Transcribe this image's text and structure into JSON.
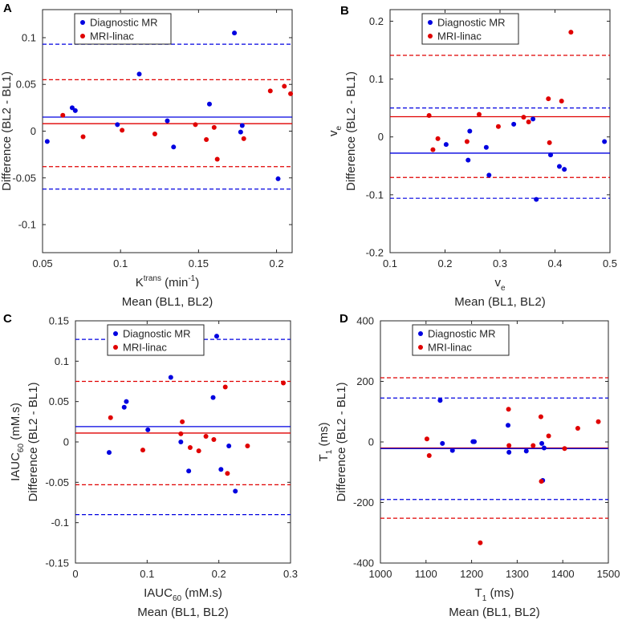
{
  "colors": {
    "diagnostic": "#0000e0",
    "linac": "#e00000",
    "axis": "#262626",
    "box": "#ffffff"
  },
  "legend": {
    "diagnostic": "Diagnostic MR",
    "linac": "MRI-linac"
  },
  "xlabel_sub": "Mean (BL1, BL2)",
  "ylabel_main": "Difference (BL2 - BL1)",
  "chart_data": [
    {
      "panel": "A",
      "type": "scatter",
      "title": "",
      "xlabel": {
        "base": "K",
        "sup": "trans",
        "suffix": " (min",
        "sup2": "-1",
        "end": ")"
      },
      "ylabel_var": {
        "base": "K",
        "sup": "trans",
        "suffix": " (min",
        "sup2": "-1",
        "end": ")"
      },
      "xlim": [
        0.05,
        0.21
      ],
      "ylim": [
        -0.13,
        0.13
      ],
      "xticks": [
        0.05,
        0.1,
        0.15,
        0.2
      ],
      "xticklabels": [
        "0.05",
        "0.1",
        "0.15",
        "0.2"
      ],
      "yticks": [
        -0.1,
        -0.05,
        0,
        0.05,
        0.1
      ],
      "yticklabels": [
        "-0.1",
        "-0.05",
        "0",
        "0.05",
        "0.1"
      ],
      "series": [
        {
          "name": "Diagnostic MR",
          "bias": 0.015,
          "loa_upper": 0.093,
          "loa_lower": -0.062,
          "x": [
            0.053,
            0.069,
            0.071,
            0.098,
            0.112,
            0.13,
            0.134,
            0.157,
            0.173,
            0.177,
            0.178,
            0.201
          ],
          "y": [
            -0.011,
            0.025,
            0.022,
            0.007,
            0.061,
            0.011,
            -0.017,
            0.029,
            0.105,
            -0.001,
            0.006,
            -0.051
          ]
        },
        {
          "name": "MRI-linac",
          "bias": 0.008,
          "loa_upper": 0.055,
          "loa_lower": -0.038,
          "x": [
            0.063,
            0.076,
            0.101,
            0.122,
            0.148,
            0.155,
            0.16,
            0.162,
            0.179,
            0.196,
            0.205,
            0.209
          ],
          "y": [
            0.017,
            -0.006,
            0.001,
            -0.003,
            0.007,
            -0.009,
            0.004,
            -0.03,
            -0.008,
            0.043,
            0.048,
            0.04
          ]
        }
      ]
    },
    {
      "panel": "B",
      "type": "scatter",
      "title": "",
      "xlabel": {
        "base": "v",
        "sub": "e"
      },
      "ylabel_var": {
        "base": "v",
        "sub": "e"
      },
      "xlim": [
        0.1,
        0.5
      ],
      "ylim": [
        -0.2,
        0.22
      ],
      "xticks": [
        0.1,
        0.2,
        0.3,
        0.4,
        0.5
      ],
      "xticklabels": [
        "0.1",
        "0.2",
        "0.3",
        "0.4",
        "0.5"
      ],
      "yticks": [
        -0.2,
        -0.1,
        0,
        0.1,
        0.2
      ],
      "yticklabels": [
        "-0.2",
        "-0.1",
        "0",
        "0.1",
        "0.2"
      ],
      "series": [
        {
          "name": "Diagnostic MR",
          "bias": -0.028,
          "loa_upper": 0.05,
          "loa_lower": -0.106,
          "x": [
            0.202,
            0.242,
            0.245,
            0.275,
            0.28,
            0.325,
            0.36,
            0.366,
            0.392,
            0.408,
            0.417,
            0.49
          ],
          "y": [
            -0.013,
            -0.04,
            0.01,
            -0.018,
            -0.066,
            0.022,
            0.031,
            -0.108,
            -0.031,
            -0.051,
            -0.056,
            -0.008
          ]
        },
        {
          "name": "MRI-linac",
          "bias": 0.035,
          "loa_upper": 0.141,
          "loa_lower": -0.07,
          "x": [
            0.171,
            0.178,
            0.187,
            0.24,
            0.262,
            0.297,
            0.343,
            0.352,
            0.388,
            0.39,
            0.412,
            0.429
          ],
          "y": [
            0.037,
            -0.022,
            -0.003,
            -0.008,
            0.039,
            0.018,
            0.034,
            0.026,
            0.066,
            -0.01,
            0.062,
            0.181
          ]
        }
      ]
    },
    {
      "panel": "C",
      "type": "scatter",
      "title": "",
      "xlabel": {
        "base": "IAUC",
        "sub": "60",
        "suffix": " (mM.s)"
      },
      "ylabel_var": {
        "base": "IAUC",
        "sub": "60",
        "suffix": " (mM.s)"
      },
      "xlim": [
        0,
        0.3
      ],
      "ylim": [
        -0.15,
        0.15
      ],
      "xticks": [
        0,
        0.1,
        0.2,
        0.3
      ],
      "xticklabels": [
        "0",
        "0.1",
        "0.2",
        "0.3"
      ],
      "yticks": [
        -0.15,
        -0.1,
        -0.05,
        0,
        0.05,
        0.1,
        0.15
      ],
      "yticklabels": [
        "-0.15",
        "-0.1",
        "-0.05",
        "0",
        "0.05",
        "0.1",
        "0.15"
      ],
      "series": [
        {
          "name": "Diagnostic MR",
          "bias": 0.019,
          "loa_upper": 0.127,
          "loa_lower": -0.09,
          "x": [
            0.047,
            0.068,
            0.071,
            0.101,
            0.133,
            0.147,
            0.158,
            0.192,
            0.197,
            0.203,
            0.214,
            0.223
          ],
          "y": [
            -0.013,
            0.043,
            0.05,
            0.015,
            0.08,
            0.0,
            -0.036,
            0.055,
            0.131,
            -0.034,
            -0.005,
            -0.061
          ]
        },
        {
          "name": "MRI-linac",
          "bias": 0.011,
          "loa_upper": 0.075,
          "loa_lower": -0.053,
          "x": [
            0.049,
            0.094,
            0.147,
            0.149,
            0.16,
            0.172,
            0.182,
            0.193,
            0.209,
            0.212,
            0.24,
            0.29
          ],
          "y": [
            0.03,
            -0.01,
            0.01,
            0.025,
            -0.007,
            -0.011,
            0.007,
            0.003,
            0.068,
            -0.039,
            -0.005,
            0.073
          ]
        }
      ]
    },
    {
      "panel": "D",
      "type": "scatter",
      "title": "",
      "xlabel": {
        "base": "T",
        "sub": "1",
        "suffix": " (ms)"
      },
      "ylabel_var": {
        "base": "T",
        "sub": "1",
        "suffix": " (ms)"
      },
      "xlim": [
        1000,
        1500
      ],
      "ylim": [
        -400,
        400
      ],
      "xticks": [
        1000,
        1100,
        1200,
        1300,
        1400,
        1500
      ],
      "xticklabels": [
        "1000",
        "1100",
        "1200",
        "1300",
        "1400",
        "1500"
      ],
      "yticks": [
        -400,
        -200,
        0,
        200,
        400
      ],
      "yticklabels": [
        "-400",
        "-200",
        "0",
        "200",
        "400"
      ],
      "series": [
        {
          "name": "Diagnostic MR",
          "bias": -22,
          "loa_upper": 145,
          "loa_lower": -190,
          "x": [
            1131,
            1136,
            1158,
            1203,
            1206,
            1280,
            1282,
            1320,
            1354,
            1356,
            1359
          ],
          "y": [
            137,
            -5,
            -28,
            1,
            1,
            55,
            -34,
            -30,
            -5,
            -127,
            -20
          ]
        },
        {
          "name": "MRI-linac",
          "bias": -20,
          "loa_upper": 212,
          "loa_lower": -252,
          "x": [
            1102,
            1107,
            1219,
            1281,
            1282,
            1335,
            1352,
            1353,
            1369,
            1404,
            1433,
            1478
          ],
          "y": [
            10,
            -45,
            -333,
            108,
            -12,
            -12,
            83,
            -130,
            20,
            -22,
            45,
            67
          ]
        }
      ]
    }
  ]
}
